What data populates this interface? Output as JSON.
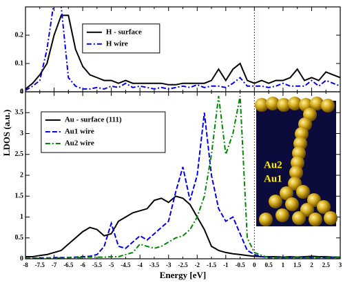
{
  "chart_data": [
    {
      "type": "line",
      "x": [
        -8,
        -7.75,
        -7.5,
        -7.25,
        -7,
        -6.75,
        -6.5,
        -6.25,
        -6,
        -5.75,
        -5.5,
        -5.25,
        -5,
        -4.75,
        -4.5,
        -4.25,
        -4,
        -3.75,
        -3.5,
        -3.25,
        -3,
        -2.75,
        -2.5,
        -2.25,
        -2,
        -1.75,
        -1.5,
        -1.25,
        -1,
        -0.75,
        -0.5,
        -0.25,
        0,
        0.25,
        0.5,
        0.75,
        1,
        1.25,
        1.5,
        1.75,
        2,
        2.25,
        2.5,
        2.75,
        3
      ],
      "xlim": [
        -8,
        3
      ],
      "ylim": [
        0,
        0.3
      ],
      "yticks": [
        0,
        0.1,
        0.2
      ],
      "vline": 0,
      "vline_color": "#e00000",
      "legend": "upper left",
      "series": [
        {
          "name": "H - surface",
          "color": "#000000",
          "dash": "solid",
          "values": [
            0.01,
            0.03,
            0.06,
            0.1,
            0.2,
            0.27,
            0.27,
            0.15,
            0.09,
            0.06,
            0.05,
            0.04,
            0.04,
            0.03,
            0.04,
            0.03,
            0.03,
            0.03,
            0.03,
            0.03,
            0.025,
            0.025,
            0.03,
            0.03,
            0.03,
            0.03,
            0.04,
            0.08,
            0.04,
            0.08,
            0.1,
            0.04,
            0.03,
            0.04,
            0.03,
            0.04,
            0.04,
            0.05,
            0.08,
            0.04,
            0.05,
            0.04,
            0.07,
            0.06,
            0.05
          ]
        },
        {
          "name": "H wire",
          "color": "#0000ee",
          "dash": "dashdot",
          "values": [
            0.005,
            0.02,
            0.04,
            0.15,
            0.32,
            0.3,
            0.05,
            0.02,
            0.01,
            0.01,
            0.015,
            0.01,
            0.02,
            0.015,
            0.03,
            0.015,
            0.02,
            0.015,
            0.01,
            0.015,
            0.01,
            0.015,
            0.02,
            0.015,
            0.025,
            0.015,
            0.02,
            0.02,
            0.015,
            0.03,
            0.05,
            0.02,
            0.02,
            0.02,
            0.015,
            0.02,
            0.03,
            0.02,
            0.02,
            0.02,
            0.04,
            0.02,
            0.04,
            0.03,
            0.02
          ]
        }
      ]
    },
    {
      "type": "line",
      "x": [
        -8,
        -7.75,
        -7.5,
        -7.25,
        -7,
        -6.75,
        -6.5,
        -6.25,
        -6,
        -5.75,
        -5.5,
        -5.25,
        -5,
        -4.75,
        -4.5,
        -4.25,
        -4,
        -3.75,
        -3.5,
        -3.25,
        -3,
        -2.75,
        -2.5,
        -2.25,
        -2,
        -1.75,
        -1.5,
        -1.25,
        -1,
        -0.75,
        -0.5,
        -0.25,
        0,
        0.25,
        0.5,
        0.75,
        1,
        1.25,
        1.5,
        1.75,
        2,
        2.25,
        2.5,
        2.75,
        3
      ],
      "xlim": [
        -8,
        3
      ],
      "xticks": [
        -8,
        -7.5,
        -7,
        -6.5,
        -6,
        -5.5,
        -5,
        -4.5,
        -4,
        -3.5,
        -3,
        -2.5,
        -2,
        -1.5,
        -1,
        -0.5,
        0,
        0.5,
        1,
        1.5,
        2,
        2.5,
        3
      ],
      "ylim": [
        0,
        4
      ],
      "yticks": [
        0,
        0.5,
        1,
        1.5,
        2,
        2.5,
        3,
        3.5,
        4
      ],
      "xlabel": "Energy [eV]",
      "ylabel": "LDOS (a.u.)",
      "vline": 0,
      "vline_color": "#e00000",
      "legend": "upper left",
      "inset_labels": [
        "Au2",
        "Au1"
      ],
      "series": [
        {
          "name": "Au - surface (111)",
          "color": "#000000",
          "dash": "solid",
          "values": [
            0.05,
            0.05,
            0.08,
            0.1,
            0.15,
            0.2,
            0.35,
            0.5,
            0.65,
            0.75,
            0.7,
            0.55,
            0.6,
            0.9,
            1.0,
            1.1,
            1.15,
            1.2,
            1.4,
            1.45,
            1.35,
            1.5,
            1.45,
            1.3,
            1.0,
            0.7,
            0.3,
            0.2,
            0.15,
            0.12,
            0.1,
            0.08,
            0.06,
            0.05,
            0.05,
            0.05,
            0.04,
            0.05,
            0.04,
            0.05,
            0.06,
            0.05,
            0.05,
            0.04,
            0.04
          ]
        },
        {
          "name": "Au1 wire",
          "color": "#0000ee",
          "dash": "dashed",
          "values": [
            0.01,
            0.01,
            0.02,
            0.02,
            0.03,
            0.03,
            0.03,
            0.04,
            0.05,
            0.06,
            0.1,
            0.3,
            0.85,
            0.3,
            0.25,
            0.4,
            0.55,
            0.45,
            0.6,
            0.75,
            0.9,
            1.6,
            2.2,
            1.4,
            2.0,
            3.5,
            2.0,
            1.2,
            0.9,
            1.0,
            0.6,
            0.2,
            0.1,
            0.05,
            0.03,
            0.03,
            0.03,
            0.03,
            0.03,
            0.03,
            0.03,
            0.03,
            0.03,
            0.03,
            0.03
          ]
        },
        {
          "name": "Au2 wire",
          "color": "#008800",
          "dash": "dashdot",
          "values": [
            0.01,
            0.01,
            0.01,
            0.02,
            0.02,
            0.02,
            0.03,
            0.03,
            0.03,
            0.04,
            0.04,
            0.04,
            0.05,
            0.05,
            0.1,
            0.15,
            0.35,
            0.3,
            0.25,
            0.3,
            0.4,
            0.5,
            0.55,
            0.7,
            1.0,
            1.5,
            2.5,
            3.9,
            2.5,
            3.0,
            3.9,
            0.5,
            0.15,
            0.08,
            0.03,
            0.03,
            0.03,
            0.03,
            0.03,
            0.03,
            0.03,
            0.03,
            0.03,
            0.03,
            0.03
          ]
        }
      ]
    }
  ]
}
